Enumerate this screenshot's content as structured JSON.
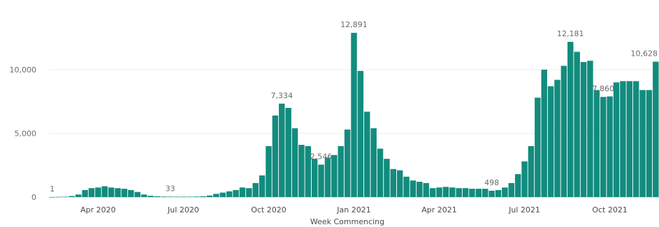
{
  "chart_data": {
    "type": "bar",
    "title": "",
    "xlabel": "Week Commencing",
    "ylabel": "",
    "ylim": [
      0,
      13500
    ],
    "y_ticks": [
      {
        "value": 0,
        "label": "0"
      },
      {
        "value": 5000,
        "label": "5,000"
      },
      {
        "value": 10000,
        "label": "10,000"
      }
    ],
    "x_ticks": [
      {
        "index": 7,
        "label": "Apr 2020"
      },
      {
        "index": 20,
        "label": "Jul 2020"
      },
      {
        "index": 33,
        "label": "Oct 2020"
      },
      {
        "index": 46,
        "label": "Jan 2021"
      },
      {
        "index": 59,
        "label": "Apr 2021"
      },
      {
        "index": 72,
        "label": "Jul 2021"
      },
      {
        "index": 85,
        "label": "Oct 2021"
      }
    ],
    "grid": true,
    "bar_color": "#128C7E",
    "values": [
      1,
      15,
      30,
      80,
      200,
      550,
      700,
      750,
      850,
      750,
      700,
      650,
      550,
      400,
      200,
      100,
      60,
      40,
      33,
      30,
      30,
      30,
      40,
      60,
      120,
      250,
      350,
      450,
      550,
      750,
      700,
      1100,
      1700,
      4000,
      6400,
      7334,
      7000,
      5400,
      4100,
      4000,
      3000,
      2546,
      3100,
      3300,
      4000,
      5300,
      12891,
      9900,
      6700,
      5400,
      3800,
      3000,
      2200,
      2100,
      1600,
      1300,
      1200,
      1100,
      700,
      750,
      800,
      750,
      700,
      700,
      650,
      650,
      650,
      498,
      550,
      750,
      1100,
      1800,
      2800,
      4000,
      7800,
      10000,
      8700,
      9200,
      10300,
      12181,
      11400,
      10600,
      10700,
      8400,
      7860,
      7900,
      9000,
      9100,
      9100,
      9100,
      8400,
      8400,
      10628
    ],
    "data_labels": [
      {
        "index": 0,
        "text": "1"
      },
      {
        "index": 18,
        "text": "33"
      },
      {
        "index": 35,
        "text": "7,334"
      },
      {
        "index": 41,
        "text": "2,546"
      },
      {
        "index": 46,
        "text": "12,891"
      },
      {
        "index": 67,
        "text": "498"
      },
      {
        "index": 79,
        "text": "12,181"
      },
      {
        "index": 84,
        "text": "7,860"
      },
      {
        "index": 92,
        "text": "10,628"
      }
    ]
  }
}
